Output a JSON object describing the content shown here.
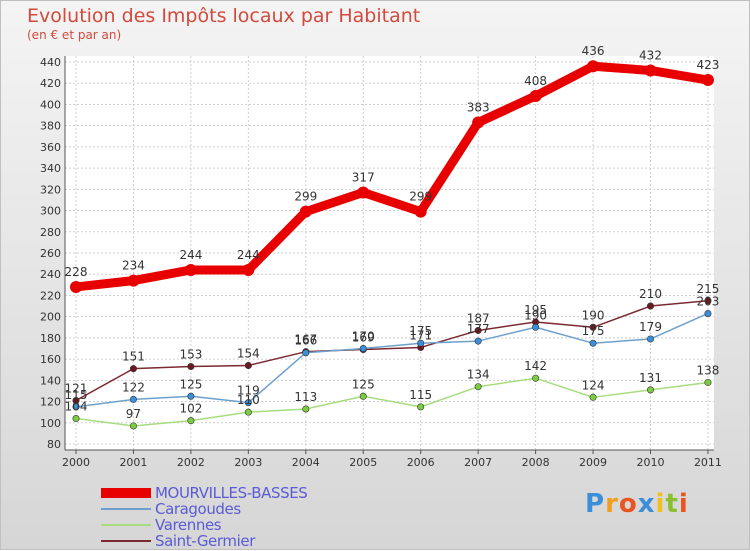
{
  "title": "Evolution des Impôts locaux par Habitant",
  "subtitle": "(en € et par an)",
  "brand": {
    "letters": [
      "P",
      "r",
      "o",
      "x",
      "i",
      "t",
      "i"
    ],
    "colors": [
      "#3a8fd8",
      "#f0a020",
      "#e85520",
      "#3a8fd8",
      "#f0c020",
      "#8ac030",
      "#e85520"
    ]
  },
  "chart_data": {
    "type": "line",
    "title": "Evolution des Impôts locaux par Habitant",
    "subtitle": "(en € et par an)",
    "xlabel": "",
    "ylabel": "",
    "ylim": [
      80,
      440
    ],
    "yticks": [
      "80",
      "100",
      "120",
      "140",
      "160",
      "180",
      "200",
      "220",
      "240",
      "260",
      "280",
      "300",
      "320",
      "340",
      "360",
      "380",
      "400",
      "420",
      "440"
    ],
    "categories": [
      "2000",
      "2001",
      "2002",
      "2003",
      "2004",
      "2005",
      "2006",
      "2007",
      "2008",
      "2009",
      "2010",
      "2011"
    ],
    "series": [
      {
        "name": "MOURVILLES-BASSES",
        "color": "#e80000",
        "marker": "#e80000",
        "values": [
          228,
          234,
          244,
          244,
          299,
          317,
          299,
          383,
          408,
          436,
          432,
          423
        ],
        "labels": [
          "228",
          "234",
          "244",
          "244",
          "299",
          "317",
          "299",
          "383",
          "408",
          "436",
          "432",
          "423"
        ]
      },
      {
        "name": "Caragoudes",
        "color": "#6fa0cc",
        "marker": "#3a8fd8",
        "values": [
          115,
          122,
          125,
          119,
          166,
          170,
          175,
          177,
          190,
          175,
          179,
          203
        ],
        "labels": [
          "115",
          "122",
          "125",
          "119",
          "166",
          "170",
          "175",
          "177",
          "190",
          "175",
          "179",
          "203"
        ]
      },
      {
        "name": "Varennes",
        "color": "#a8dc80",
        "marker": "#7ccc40",
        "values": [
          104,
          97,
          102,
          110,
          113,
          125,
          115,
          134,
          142,
          124,
          131,
          138
        ],
        "labels": [
          "104",
          "97",
          "102",
          "110",
          "113",
          "125",
          "115",
          "134",
          "142",
          "124",
          "131",
          "138"
        ]
      },
      {
        "name": "Saint-Germier",
        "color": "#7a2a30",
        "marker": "#6a1a20",
        "values": [
          121,
          151,
          153,
          154,
          167,
          169,
          171,
          187,
          195,
          190,
          210,
          215
        ],
        "labels": [
          "121",
          "151",
          "153",
          "154",
          "167",
          "169",
          "171",
          "187",
          "195",
          "190",
          "210",
          "215"
        ]
      }
    ],
    "legend_position": "bottom-left"
  }
}
